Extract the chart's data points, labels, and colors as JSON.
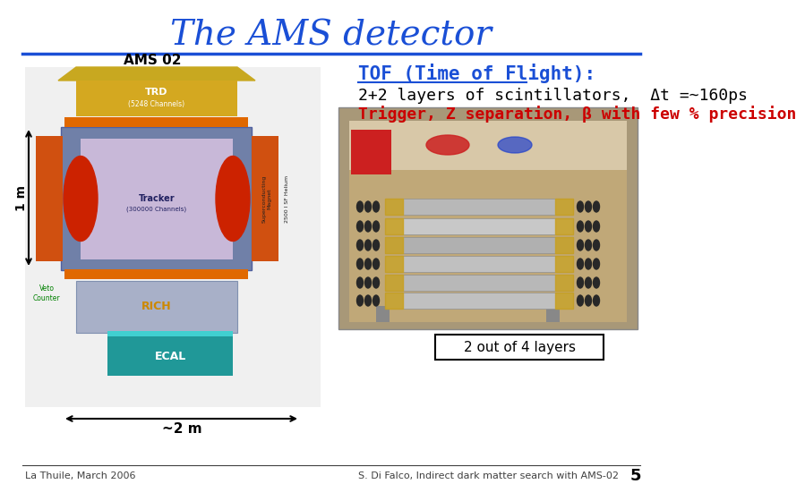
{
  "title": "The AMS detector",
  "title_color": "#1a4fd6",
  "title_fontsize": 28,
  "background_color": "#ffffff",
  "tof_heading": "TOF (Time of Flight):",
  "tof_heading_color": "#1a4fd6",
  "tof_heading_fontsize": 15,
  "tof_line1": "2+2 layers of scintillators,  Δt =~160ps",
  "tof_line1_color": "#000000",
  "tof_line1_fontsize": 13,
  "tof_line2": "Trigger, Z separation, β with few % precision",
  "tof_line2_color": "#cc0000",
  "tof_line2_fontsize": 13,
  "label_1m": "1 m",
  "label_2m": "~2 m",
  "label_2outof4": "2 out of 4 layers",
  "footer_left": "La Thuile, March 2006",
  "footer_right": "S. Di Falco, Indirect dark matter search with AMS-02",
  "footer_page": "5",
  "divider_color": "#1a4fd6",
  "footer_color": "#404040"
}
